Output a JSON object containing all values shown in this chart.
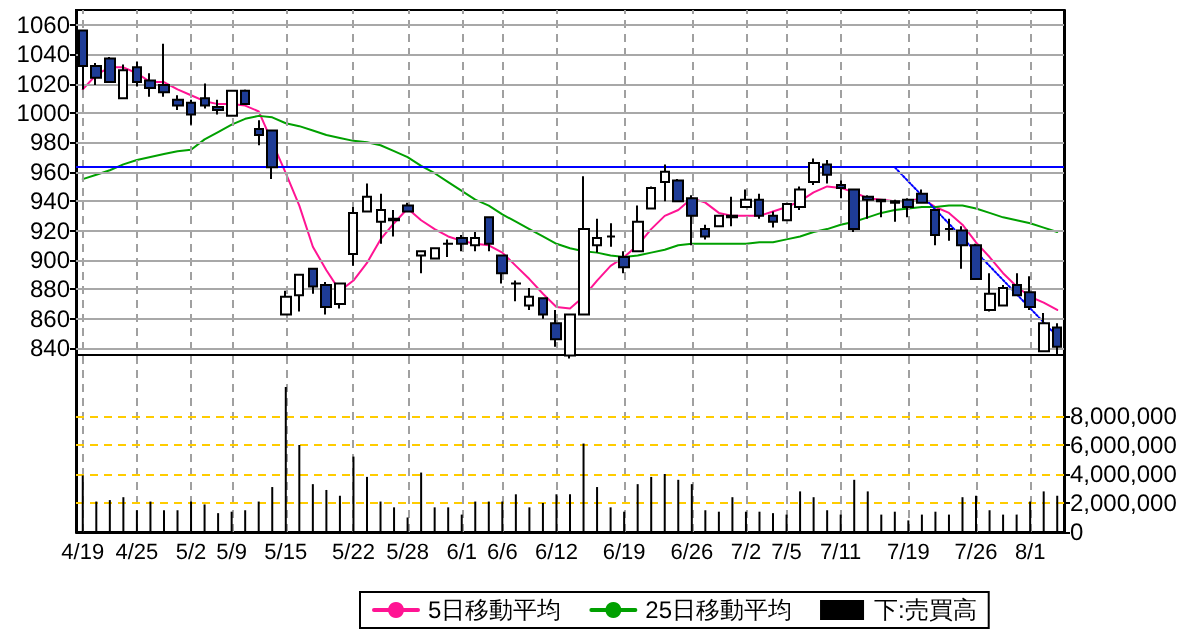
{
  "chart_data": {
    "type": "candlestick",
    "categories": [
      "4/19",
      null,
      null,
      null,
      "4/25",
      null,
      null,
      null,
      "5/2",
      null,
      null,
      "5/9",
      null,
      null,
      null,
      "5/15",
      null,
      null,
      null,
      null,
      "5/22",
      null,
      null,
      null,
      "5/28",
      null,
      null,
      null,
      "6/1",
      null,
      null,
      "6/6",
      null,
      null,
      null,
      "6/12",
      null,
      null,
      null,
      null,
      "6/19",
      null,
      null,
      null,
      null,
      "6/26",
      null,
      null,
      null,
      "7/2",
      null,
      null,
      "7/5",
      null,
      null,
      null,
      "7/11",
      null,
      null,
      null,
      null,
      "7/19",
      null,
      null,
      null,
      null,
      "7/26",
      null,
      null,
      null,
      "8/1",
      null,
      null
    ],
    "series": [
      {
        "colors": [
          "#1e3c96",
          "#1e3c96",
          "#1e3c96",
          "#ffffff",
          "#1e3c96",
          "#1e3c96",
          "#1e3c96",
          "#1e3c96",
          "#1e3c96",
          "#1e3c96",
          "#1e3c96",
          "#ffffff",
          "#1e3c96",
          "#1e3c96",
          "#1e3c96",
          "#ffffff",
          "#ffffff",
          "#1e3c96",
          "#1e3c96",
          "#ffffff",
          "#ffffff",
          "#ffffff",
          "#ffffff",
          "#1e3c96",
          "#1e3c96",
          "#ffffff",
          "#ffffff",
          "#000000",
          "#1e3c96",
          "#ffffff",
          "#1e3c96",
          "#1e3c96",
          "#000000",
          "#ffffff",
          "#1e3c96",
          "#1e3c96",
          "#ffffff",
          "#ffffff",
          "#ffffff",
          "#000000",
          "#1e3c96",
          "#ffffff",
          "#ffffff",
          "#ffffff",
          "#1e3c96",
          "#1e3c96",
          "#1e3c96",
          "#ffffff",
          "#ffffff",
          "#ffffff",
          "#1e3c96",
          "#1e3c96",
          "#ffffff",
          "#ffffff",
          "#ffffff",
          "#1e3c96",
          "#1e3c96",
          "#1e3c96",
          "#1e3c96",
          "#1e3c96",
          "#1e3c96",
          "#1e3c96",
          "#1e3c96",
          "#1e3c96",
          "#000000",
          "#1e3c96",
          "#1e3c96",
          "#ffffff",
          "#ffffff",
          "#1e3c96",
          "#1e3c96",
          "#ffffff",
          "#1e3c96"
        ],
        "ohlc": [
          [
            1056,
            1056,
            1016,
            1032
          ],
          [
            1032,
            1034,
            1019,
            1024
          ],
          [
            1037,
            1038,
            1021,
            1021
          ],
          [
            1010,
            1033,
            1010,
            1029
          ],
          [
            1031,
            1035,
            1018,
            1021
          ],
          [
            1022,
            1027,
            1011,
            1017
          ],
          [
            1019,
            1047,
            1011,
            1014
          ],
          [
            1009,
            1012,
            1002,
            1005
          ],
          [
            1007,
            1009,
            992,
            999
          ],
          [
            1010,
            1020,
            1003,
            1005
          ],
          [
            1004,
            1009,
            999,
            1002
          ],
          [
            998,
            1015,
            998,
            1015
          ],
          [
            1015,
            1016,
            1006,
            1006
          ],
          [
            989,
            995,
            978,
            985
          ],
          [
            988,
            988,
            955,
            963
          ],
          [
            863,
            879,
            863,
            875
          ],
          [
            876,
            890,
            865,
            890
          ],
          [
            894,
            894,
            877,
            882
          ],
          [
            883,
            885,
            863,
            868
          ],
          [
            870,
            884,
            867,
            884
          ],
          [
            904,
            936,
            896,
            932
          ],
          [
            933,
            952,
            933,
            943
          ],
          [
            926,
            945,
            911,
            934
          ],
          [
            928,
            934,
            916,
            927
          ],
          [
            937,
            939,
            933,
            933
          ],
          [
            903,
            906,
            891,
            906
          ],
          [
            901,
            908,
            901,
            908
          ],
          [
            911,
            914,
            902,
            911
          ],
          [
            915,
            917,
            906,
            911
          ],
          [
            910,
            919,
            906,
            915
          ],
          [
            929,
            929,
            906,
            911
          ],
          [
            903,
            903,
            884,
            891
          ],
          [
            884,
            886,
            872,
            884
          ],
          [
            869,
            881,
            866,
            875
          ],
          [
            874,
            874,
            860,
            863
          ],
          [
            857,
            866,
            841,
            846
          ],
          [
            835,
            863,
            833,
            863
          ],
          [
            863,
            957,
            863,
            921
          ],
          [
            910,
            928,
            905,
            915
          ],
          [
            916,
            925,
            909,
            916
          ],
          [
            902,
            906,
            891,
            895
          ],
          [
            906,
            937,
            906,
            926
          ],
          [
            935,
            950,
            935,
            949
          ],
          [
            953,
            965,
            940,
            960
          ],
          [
            954,
            955,
            940,
            940
          ],
          [
            942,
            944,
            910,
            930
          ],
          [
            921,
            924,
            914,
            916
          ],
          [
            923,
            930,
            923,
            930
          ],
          [
            929,
            943,
            923,
            930
          ],
          [
            936,
            948,
            936,
            941
          ],
          [
            941,
            945,
            928,
            930
          ],
          [
            930,
            933,
            922,
            926
          ],
          [
            927,
            938,
            927,
            938
          ],
          [
            936,
            950,
            934,
            948
          ],
          [
            953,
            969,
            951,
            966
          ],
          [
            965,
            968,
            952,
            958
          ],
          [
            951,
            954,
            942,
            949
          ],
          [
            948,
            948,
            919,
            921
          ],
          [
            943,
            944,
            928,
            941
          ],
          [
            941,
            941,
            929,
            940
          ],
          [
            940,
            941,
            926,
            939
          ],
          [
            941,
            942,
            929,
            936
          ],
          [
            945,
            948,
            939,
            939
          ],
          [
            934,
            934,
            910,
            917
          ],
          [
            921,
            928,
            913,
            921
          ],
          [
            920,
            923,
            894,
            910
          ],
          [
            910,
            911,
            887,
            887
          ],
          [
            866,
            891,
            865,
            877
          ],
          [
            869,
            883,
            869,
            881
          ],
          [
            883,
            891,
            876,
            876
          ],
          [
            878,
            889,
            866,
            868
          ],
          [
            838,
            864,
            838,
            857
          ],
          [
            854,
            857,
            836,
            841
          ]
        ]
      },
      {
        "type": "line",
        "name": "5日移動平均",
        "color": "#ff1493",
        "values": [
          1016,
          1026,
          1031,
          1031,
          1027,
          1021,
          1021,
          1016,
          1012,
          1008,
          1006,
          1006,
          1005,
          1001,
          null,
          959,
          937,
          909,
          893,
          879,
          886,
          898,
          914,
          925,
          935,
          927,
          921,
          916,
          913,
          911,
          910,
          905,
          896,
          887,
          877,
          868,
          867,
          875,
          886,
          896,
          902,
          910,
          921,
          930,
          934,
          942,
          939,
          932,
          930,
          930,
          930,
          933,
          936,
          940,
          946,
          950,
          949,
          946,
          942,
          941,
          940,
          940,
          942,
          936,
          932,
          924,
          912,
          902,
          891,
          882,
          875,
          871,
          866
        ]
      },
      {
        "type": "line",
        "name": "25日移動平均",
        "color": "#00a000",
        "values": [
          955,
          958,
          961,
          965,
          968,
          970,
          972,
          974,
          975,
          982,
          987,
          992,
          996,
          998,
          997,
          993,
          991,
          988,
          985,
          983,
          981,
          980,
          978,
          974,
          970,
          964,
          959,
          953,
          947,
          941,
          937,
          931,
          926,
          921,
          916,
          911,
          908,
          906,
          905,
          903,
          902,
          903,
          905,
          907,
          910,
          911,
          911,
          911,
          911,
          911,
          912,
          912,
          914,
          916,
          919,
          921,
          924,
          926,
          929,
          932,
          934,
          935,
          936,
          936,
          937,
          937,
          935,
          932,
          929,
          927,
          925,
          922,
          919
        ]
      },
      {
        "type": "line",
        "color": "#0000ff",
        "line_style": "dotted",
        "values": [
          null,
          null,
          null,
          null,
          null,
          null,
          null,
          null,
          null,
          null,
          null,
          null,
          null,
          null,
          null,
          null,
          null,
          null,
          null,
          null,
          null,
          null,
          null,
          null,
          null,
          null,
          null,
          null,
          null,
          null,
          null,
          null,
          null,
          null,
          null,
          null,
          null,
          null,
          null,
          null,
          null,
          null,
          null,
          null,
          null,
          null,
          null,
          null,
          null,
          null,
          null,
          null,
          null,
          null,
          null,
          null,
          null,
          null,
          null,
          null,
          963,
          null,
          null,
          null,
          null,
          null,
          null,
          null,
          null,
          null,
          null,
          null,
          848
        ]
      },
      {
        "type": "bar",
        "name": "下:売買高",
        "color": "#000000",
        "axis": "y2",
        "values": [
          3900000,
          2100000,
          2200000,
          2400000,
          1500000,
          2100000,
          1500000,
          1500000,
          2100000,
          1900000,
          1300000,
          1400000,
          1500000,
          2100000,
          3100000,
          10000000,
          6000000,
          3300000,
          2900000,
          2500000,
          5200000,
          3800000,
          2100000,
          1700000,
          1000000,
          4100000,
          1700000,
          1700000,
          1200000,
          2100000,
          2100000,
          2100000,
          2600000,
          1700000,
          2000000,
          2600000,
          2600000,
          6100000,
          3100000,
          1700000,
          1400000,
          3300000,
          3800000,
          4000000,
          3600000,
          3300000,
          1500000,
          1400000,
          2400000,
          1400000,
          1400000,
          1300000,
          1200000,
          2800000,
          2400000,
          1500000,
          1200000,
          3600000,
          2800000,
          1200000,
          1400000,
          800000,
          1200000,
          1400000,
          1200000,
          2400000,
          2500000,
          1500000,
          1200000,
          1200000,
          2100000,
          2800000,
          2500000
        ]
      }
    ],
    "ylim": [
      715,
      1070
    ],
    "yticks": [
      840,
      860,
      880,
      900,
      920,
      940,
      960,
      980,
      1000,
      1020,
      1040,
      1060
    ],
    "y2lim": [
      0,
      36000000
    ],
    "y2ticks": [
      0,
      {
        "value": 2000000,
        "label": "2,000,000"
      },
      {
        "value": 4000000,
        "label": "4,000,000"
      },
      {
        "value": 6000000,
        "label": "6,000,000"
      },
      {
        "value": 8000000,
        "label": "8,000,000"
      }
    ],
    "ref_lines": [
      {
        "axis": "y",
        "value": 963,
        "color": "#0000ff"
      },
      {
        "axis": "y",
        "value": 836,
        "color": "#000000"
      }
    ],
    "grid": true,
    "legend": "bottom",
    "marker": "none",
    "line_style": "solid"
  }
}
